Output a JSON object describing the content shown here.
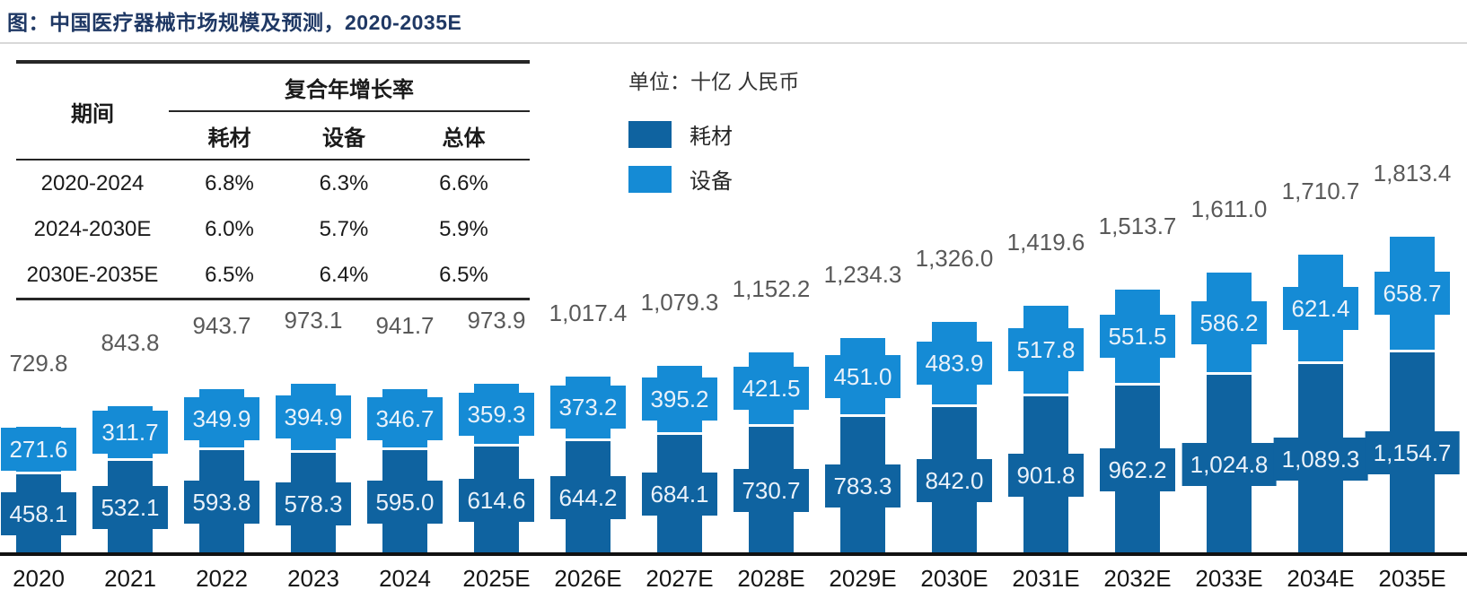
{
  "title": "图：中国医疗器械市场规模及预测，2020-2035E",
  "unit_label": "单位：十亿 人民币",
  "legend": [
    {
      "label": "耗材",
      "color": "#0F63A0"
    },
    {
      "label": "设备",
      "color": "#158BD5"
    }
  ],
  "table": {
    "period_header": "期间",
    "cagr_header": "复合年增长率",
    "sub_headers": [
      "耗材",
      "设备",
      "总体"
    ],
    "rows": [
      {
        "period": "2020-2024",
        "consumables": "6.8%",
        "equipment": "6.3%",
        "overall": "6.6%"
      },
      {
        "period": "2024-2030E",
        "consumables": "6.0%",
        "equipment": "5.7%",
        "overall": "5.9%"
      },
      {
        "period": "2030E-2035E",
        "consumables": "6.5%",
        "equipment": "6.4%",
        "overall": "6.5%"
      }
    ]
  },
  "chart_data": {
    "type": "bar",
    "stacked": true,
    "title": "中国医疗器械市场规模及预测，2020-2035E",
    "unit": "十亿人民币",
    "grid": false,
    "legend_position": "top-left",
    "categories": [
      "2020",
      "2021",
      "2022",
      "2023",
      "2024",
      "2025E",
      "2026E",
      "2027E",
      "2028E",
      "2029E",
      "2030E",
      "2031E",
      "2032E",
      "2033E",
      "2034E",
      "2035E"
    ],
    "series": [
      {
        "name": "耗材",
        "color": "#0F63A0",
        "values": [
          458.1,
          532.1,
          593.8,
          578.3,
          595.0,
          614.6,
          644.2,
          684.1,
          730.7,
          783.3,
          842.0,
          901.8,
          962.2,
          1024.8,
          1089.3,
          1154.7
        ]
      },
      {
        "name": "设备",
        "color": "#158BD5",
        "values": [
          271.6,
          311.7,
          349.9,
          394.9,
          346.7,
          359.3,
          373.2,
          395.2,
          421.5,
          451.0,
          483.9,
          517.8,
          551.5,
          586.2,
          621.4,
          658.7
        ]
      }
    ],
    "totals": [
      729.8,
      843.8,
      943.7,
      973.1,
      941.7,
      973.9,
      1017.4,
      1079.3,
      1152.2,
      1234.3,
      1326.0,
      1419.6,
      1513.7,
      1611.0,
      1710.7,
      1813.4
    ],
    "value_label_color": "#EAF2FA",
    "total_label_color": "#595959",
    "axis_line_color": "#111111"
  },
  "colors": {
    "title": "#1F3864",
    "divider": "#D8D8D8",
    "table_border": "#262626",
    "text": "#1A1A1A"
  }
}
